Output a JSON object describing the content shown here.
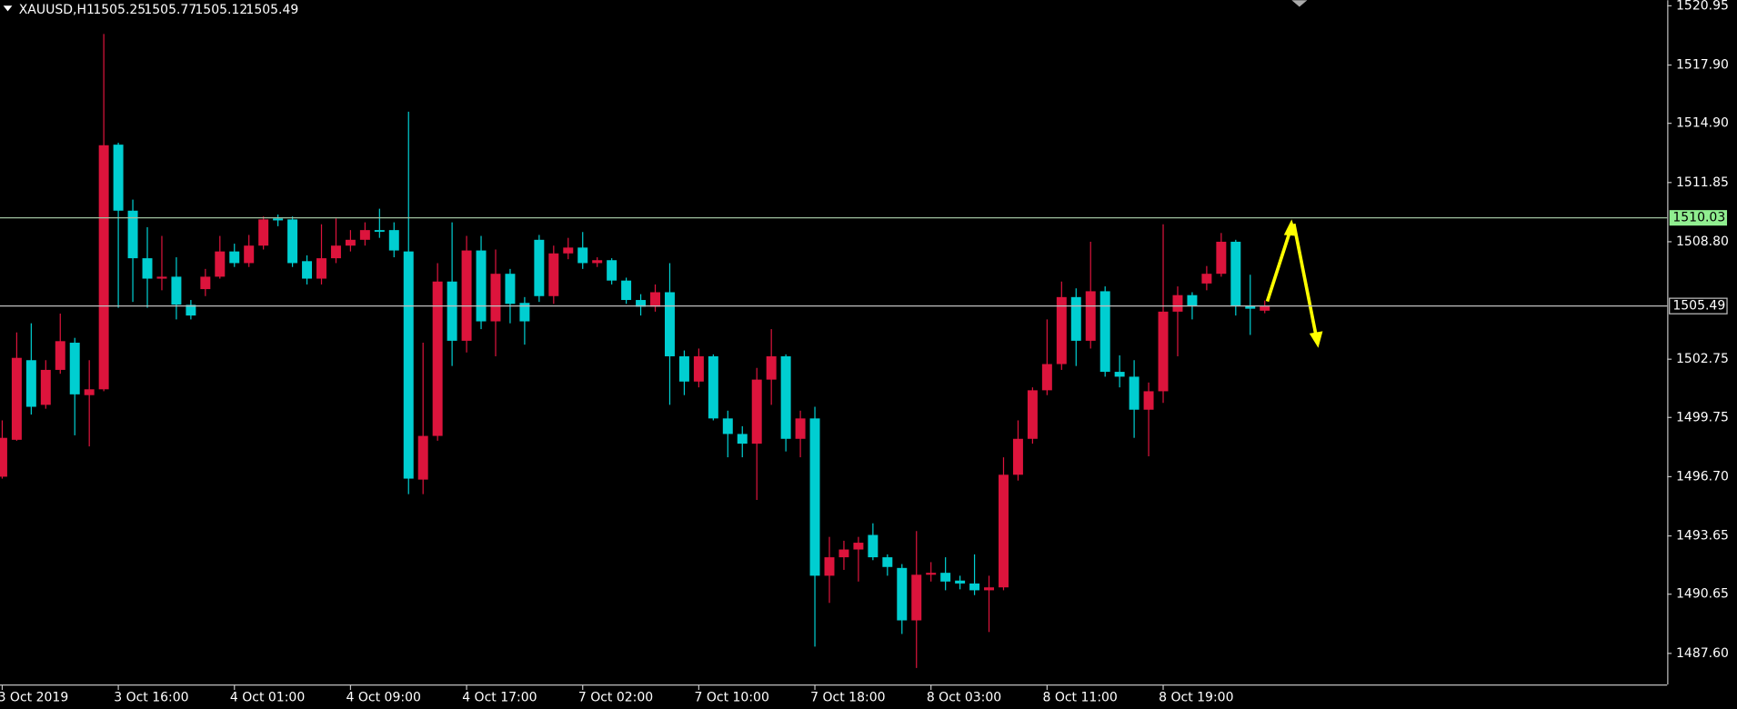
{
  "chart_data": {
    "type": "candlestick",
    "symbol": "XAUUSD,H1",
    "categories": [
      "3 Oct 2019",
      null,
      null,
      null,
      null,
      null,
      null,
      null,
      "3 Oct 16:00",
      null,
      null,
      null,
      null,
      null,
      null,
      null,
      "4 Oct 01:00",
      null,
      null,
      null,
      null,
      null,
      null,
      null,
      "4 Oct 09:00",
      null,
      null,
      null,
      null,
      null,
      null,
      null,
      "4 Oct 17:00",
      null,
      null,
      null,
      null,
      null,
      null,
      null,
      "7 Oct 02:00",
      null,
      null,
      null,
      null,
      null,
      null,
      null,
      "7 Oct 10:00",
      null,
      null,
      null,
      null,
      null,
      null,
      null,
      "7 Oct 18:00",
      null,
      null,
      null,
      null,
      null,
      null,
      null,
      "8 Oct 03:00",
      null,
      null,
      null,
      null,
      null,
      null,
      null,
      "8 Oct 11:00",
      null,
      null,
      null,
      null,
      null,
      null,
      null,
      "8 Oct 19:00",
      null,
      null,
      null,
      null,
      null,
      null,
      null
    ],
    "open": [
      1496.7,
      1498.6,
      1502.7,
      1500.4,
      1502.2,
      1503.6,
      1500.9,
      1501.2,
      1513.8,
      1510.4,
      1507.95,
      1506.9,
      1507.0,
      1505.55,
      1506.36,
      1507.0,
      1508.3,
      1507.7,
      1508.6,
      1510.0,
      1509.95,
      1507.8,
      1506.9,
      1507.95,
      1508.6,
      1508.9,
      1509.4,
      1509.4,
      1508.3,
      1496.55,
      1498.8,
      1506.75,
      1503.7,
      1508.35,
      1504.7,
      1507.15,
      1505.65,
      1508.9,
      1506.0,
      1508.2,
      1508.5,
      1507.7,
      1507.85,
      1506.8,
      1505.8,
      1505.45,
      1506.2,
      1502.9,
      1501.6,
      1502.9,
      1499.7,
      1498.9,
      1498.4,
      1501.7,
      1502.9,
      1498.65,
      1499.7,
      1491.6,
      1492.55,
      1492.95,
      1493.7,
      1492.55,
      1492.0,
      1489.3,
      1491.65,
      1491.75,
      1491.35,
      1491.2,
      1490.85,
      1491.0,
      1496.8,
      1498.65,
      1501.15,
      1502.5,
      1505.95,
      1503.7,
      1506.25,
      1502.1,
      1501.85,
      1500.15,
      1501.1,
      1505.2,
      1506.05,
      1506.65,
      1507.15,
      1508.8,
      1505.5,
      1505.25
    ],
    "high": [
      1499.6,
      1504.13,
      1504.6,
      1502.7,
      1505.1,
      1503.85,
      1502.7,
      1519.5,
      1513.9,
      1510.97,
      1509.55,
      1509.1,
      1508.0,
      1505.8,
      1507.4,
      1509.1,
      1508.7,
      1509.15,
      1510.1,
      1510.2,
      1510.1,
      1508.1,
      1509.7,
      1510.0,
      1509.4,
      1509.8,
      1510.5,
      1509.8,
      1515.5,
      1503.6,
      1507.7,
      1509.8,
      1509.1,
      1509.1,
      1508.4,
      1507.4,
      1505.95,
      1509.15,
      1508.6,
      1509.0,
      1509.3,
      1508.0,
      1507.95,
      1506.95,
      1506.1,
      1506.6,
      1507.7,
      1503.2,
      1503.3,
      1503.0,
      1500.1,
      1499.3,
      1502.3,
      1504.3,
      1503.0,
      1500.1,
      1500.3,
      1493.6,
      1493.4,
      1493.6,
      1494.3,
      1492.7,
      1492.2,
      1493.9,
      1492.3,
      1492.55,
      1491.6,
      1492.7,
      1491.6,
      1497.7,
      1499.6,
      1501.3,
      1504.8,
      1506.75,
      1506.4,
      1508.8,
      1506.5,
      1502.95,
      1502.7,
      1501.55,
      1509.7,
      1506.5,
      1506.2,
      1507.55,
      1509.25,
      1508.9,
      1507.1,
      1505.77
    ],
    "low": [
      1496.6,
      1498.55,
      1499.9,
      1500.2,
      1502.0,
      1498.83,
      1498.26,
      1501.1,
      1505.4,
      1505.7,
      1505.4,
      1506.3,
      1504.8,
      1504.8,
      1506.0,
      1506.9,
      1507.5,
      1507.5,
      1508.4,
      1509.6,
      1507.5,
      1506.6,
      1506.6,
      1507.7,
      1508.3,
      1508.6,
      1509.0,
      1508.0,
      1495.8,
      1495.8,
      1498.55,
      1502.4,
      1503.1,
      1504.3,
      1502.9,
      1504.6,
      1503.5,
      1505.7,
      1505.6,
      1507.9,
      1507.4,
      1507.5,
      1506.6,
      1505.6,
      1505.0,
      1505.2,
      1500.4,
      1500.9,
      1501.3,
      1499.6,
      1497.7,
      1497.7,
      1495.5,
      1500.4,
      1498.0,
      1497.7,
      1487.95,
      1490.2,
      1491.9,
      1491.3,
      1492.4,
      1491.6,
      1488.6,
      1486.85,
      1491.3,
      1490.85,
      1490.9,
      1490.6,
      1488.7,
      1490.85,
      1496.5,
      1498.4,
      1500.9,
      1502.2,
      1502.4,
      1503.3,
      1501.85,
      1501.3,
      1498.7,
      1497.75,
      1500.5,
      1502.9,
      1504.8,
      1506.3,
      1507.0,
      1505.0,
      1504.0,
      1505.12
    ],
    "close": [
      1498.7,
      1502.82,
      1500.3,
      1502.2,
      1503.68,
      1500.94,
      1501.2,
      1513.77,
      1510.4,
      1507.95,
      1506.9,
      1507.0,
      1505.56,
      1505.0,
      1507.0,
      1508.3,
      1507.7,
      1508.6,
      1509.95,
      1509.9,
      1507.7,
      1506.9,
      1507.95,
      1508.6,
      1508.9,
      1509.4,
      1509.35,
      1508.35,
      1496.6,
      1498.8,
      1506.75,
      1503.7,
      1508.35,
      1504.7,
      1507.15,
      1505.6,
      1504.7,
      1506.0,
      1508.2,
      1508.5,
      1507.7,
      1507.85,
      1506.8,
      1505.8,
      1505.45,
      1506.2,
      1502.9,
      1501.6,
      1502.9,
      1499.7,
      1498.9,
      1498.4,
      1501.7,
      1502.9,
      1498.65,
      1499.7,
      1491.6,
      1492.55,
      1492.95,
      1493.3,
      1492.55,
      1492.05,
      1489.3,
      1491.65,
      1491.75,
      1491.3,
      1491.2,
      1490.85,
      1491.0,
      1496.8,
      1498.65,
      1501.15,
      1502.5,
      1505.95,
      1503.7,
      1506.25,
      1502.1,
      1501.85,
      1500.15,
      1501.1,
      1505.2,
      1506.05,
      1505.5,
      1507.15,
      1508.8,
      1505.5,
      1505.35,
      1505.49
    ],
    "up_color": "#dc143c",
    "down_color": "#00ced1",
    "ylim": [
      1486.0,
      1521.24
    ],
    "yticks": [
      {
        "value": 1520.95,
        "label": "1520.95"
      },
      {
        "value": 1517.9,
        "label": "1517.90"
      },
      {
        "value": 1514.9,
        "label": "1514.90"
      },
      {
        "value": 1511.85,
        "label": "1511.85"
      },
      {
        "value": 1508.8,
        "label": "1508.80"
      },
      {
        "value": 1502.75,
        "label": "1502.75"
      },
      {
        "value": 1499.75,
        "label": "1499.75"
      },
      {
        "value": 1496.7,
        "label": "1496.70"
      },
      {
        "value": 1493.65,
        "label": "1493.65"
      },
      {
        "value": 1490.65,
        "label": "1490.65"
      },
      {
        "value": 1487.6,
        "label": "1487.60"
      }
    ],
    "hline": 1510.03
  }
}
